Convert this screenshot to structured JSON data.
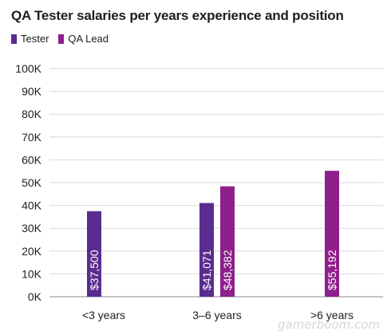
{
  "chart_data": {
    "type": "bar",
    "title": "QA Tester salaries per years experience and position",
    "categories": [
      "<3 years",
      "3–6 years",
      ">6 years"
    ],
    "series": [
      {
        "name": "Tester",
        "color": "#5b2c8f",
        "values": [
          37500,
          41071,
          null
        ],
        "labels": [
          "$37,500",
          "$41,071",
          ""
        ]
      },
      {
        "name": "QA Lead",
        "color": "#8e1f8c",
        "values": [
          null,
          48382,
          55192
        ],
        "labels": [
          "",
          "$48,382",
          "$55,192"
        ]
      }
    ],
    "yticks": [
      0,
      10000,
      20000,
      30000,
      40000,
      50000,
      60000,
      70000,
      80000,
      90000,
      100000
    ],
    "ytick_labels": [
      "0K",
      "10K",
      "20K",
      "30K",
      "40K",
      "50K",
      "60K",
      "70K",
      "80K",
      "90K",
      "100K"
    ],
    "ylim": [
      0,
      100000
    ],
    "grid": true,
    "legend_position": "top-left",
    "xlabel": "",
    "ylabel": ""
  },
  "watermark_text": "gamerboom.com"
}
